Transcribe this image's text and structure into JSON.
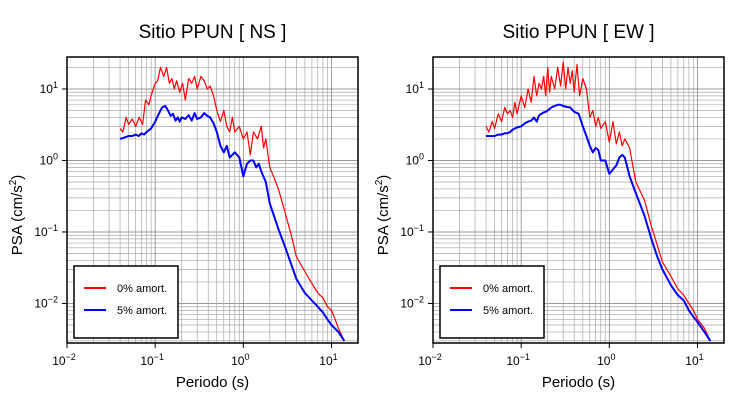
{
  "chart_data": [
    {
      "type": "line",
      "title": "Sitio PPUN [ NS ]",
      "xlabel": "Periodo (s)",
      "ylabel_base": "PSA (cm/s",
      "ylabel_sup": "2",
      "ylabel_close": ")",
      "xscale": "log",
      "yscale": "log",
      "xlim": [
        0.01,
        20
      ],
      "ylim": [
        0.0028,
        28
      ],
      "grid": true,
      "legend_placement": "bottom-left",
      "x_ticks": [
        {
          "value": 0.01,
          "base": "10",
          "exp": "−2"
        },
        {
          "value": 0.1,
          "base": "10",
          "exp": "−1"
        },
        {
          "value": 1,
          "base": "10",
          "exp": "0"
        },
        {
          "value": 10,
          "base": "10",
          "exp": "1"
        }
      ],
      "y_ticks": [
        {
          "value": 0.01,
          "base": "10",
          "exp": "−2"
        },
        {
          "value": 0.1,
          "base": "10",
          "exp": "−1"
        },
        {
          "value": 1,
          "base": "10",
          "exp": "0"
        },
        {
          "value": 10,
          "base": "10",
          "exp": "1"
        }
      ],
      "series": [
        {
          "name": "0% amort.",
          "color": "#ff0000",
          "x": [
            0.04,
            0.043,
            0.047,
            0.05,
            0.055,
            0.06,
            0.066,
            0.072,
            0.078,
            0.085,
            0.09,
            0.095,
            0.1,
            0.107,
            0.115,
            0.125,
            0.135,
            0.145,
            0.155,
            0.165,
            0.175,
            0.19,
            0.205,
            0.22,
            0.24,
            0.26,
            0.28,
            0.3,
            0.33,
            0.36,
            0.39,
            0.42,
            0.46,
            0.5,
            0.55,
            0.6,
            0.65,
            0.7,
            0.75,
            0.8,
            0.9,
            1.0,
            1.1,
            1.2,
            1.3,
            1.45,
            1.6,
            1.7,
            1.8,
            2.0,
            2.2,
            2.5,
            3.0,
            3.5,
            4.0,
            5.0,
            6.0,
            7.0,
            8.0,
            9.0,
            10.0,
            11.0,
            12.0,
            14.0
          ],
          "y": [
            2.8,
            2.5,
            4.0,
            3.2,
            3.8,
            3.0,
            4.0,
            3.2,
            7.0,
            6.0,
            8.0,
            10.0,
            12.0,
            13.0,
            20.0,
            15.0,
            20.0,
            12.0,
            14.0,
            10.0,
            13.0,
            9.0,
            12.0,
            7.0,
            14.0,
            12.0,
            15.0,
            10.0,
            15.0,
            13.0,
            10.0,
            11.0,
            8.0,
            5.0,
            3.5,
            5.0,
            3.0,
            2.5,
            4.0,
            2.5,
            3.0,
            2.0,
            2.5,
            1.2,
            2.5,
            2.0,
            3.0,
            1.5,
            2.0,
            0.8,
            0.6,
            0.4,
            0.18,
            0.09,
            0.045,
            0.028,
            0.019,
            0.014,
            0.012,
            0.009,
            0.008,
            0.006,
            0.0045,
            0.003
          ]
        },
        {
          "name": "5% amort.",
          "color": "#0000ff",
          "x": [
            0.04,
            0.045,
            0.05,
            0.055,
            0.06,
            0.065,
            0.07,
            0.075,
            0.08,
            0.09,
            0.1,
            0.11,
            0.12,
            0.13,
            0.14,
            0.15,
            0.16,
            0.17,
            0.18,
            0.19,
            0.2,
            0.22,
            0.24,
            0.26,
            0.28,
            0.3,
            0.33,
            0.36,
            0.39,
            0.42,
            0.46,
            0.5,
            0.55,
            0.6,
            0.65,
            0.7,
            0.8,
            0.9,
            1.0,
            1.1,
            1.2,
            1.3,
            1.4,
            1.5,
            1.6,
            1.8,
            2.0,
            2.5,
            3.0,
            3.5,
            4.0,
            5.0,
            6.0,
            7.0,
            8.0,
            9.0,
            10.0,
            12.0,
            14.0
          ],
          "y": [
            2.0,
            2.1,
            2.2,
            2.2,
            2.3,
            2.2,
            2.4,
            2.3,
            2.5,
            2.8,
            3.5,
            4.5,
            5.5,
            5.8,
            5.0,
            4.2,
            4.5,
            3.6,
            4.0,
            3.5,
            4.0,
            3.8,
            4.3,
            3.6,
            4.6,
            3.8,
            4.0,
            4.6,
            4.2,
            4.0,
            3.3,
            2.5,
            1.6,
            1.3,
            1.6,
            1.1,
            1.3,
            1.1,
            0.6,
            0.9,
            1.0,
            1.0,
            0.8,
            0.9,
            0.7,
            0.5,
            0.25,
            0.11,
            0.06,
            0.035,
            0.022,
            0.014,
            0.011,
            0.009,
            0.0075,
            0.006,
            0.005,
            0.004,
            0.003
          ]
        }
      ]
    },
    {
      "type": "line",
      "title": "Sitio PPUN [ EW ]",
      "xlabel": "Periodo (s)",
      "ylabel_base": "PSA (cm/s",
      "ylabel_sup": "2",
      "ylabel_close": ")",
      "xscale": "log",
      "yscale": "log",
      "xlim": [
        0.01,
        20
      ],
      "ylim": [
        0.0028,
        28
      ],
      "grid": true,
      "legend_placement": "bottom-left",
      "x_ticks": [
        {
          "value": 0.01,
          "base": "10",
          "exp": "−2"
        },
        {
          "value": 0.1,
          "base": "10",
          "exp": "−1"
        },
        {
          "value": 1,
          "base": "10",
          "exp": "0"
        },
        {
          "value": 10,
          "base": "10",
          "exp": "1"
        }
      ],
      "y_ticks": [
        {
          "value": 0.01,
          "base": "10",
          "exp": "−2"
        },
        {
          "value": 0.1,
          "base": "10",
          "exp": "−1"
        },
        {
          "value": 1,
          "base": "10",
          "exp": "0"
        },
        {
          "value": 10,
          "base": "10",
          "exp": "1"
        }
      ],
      "series": [
        {
          "name": "0% amort.",
          "color": "#ff0000",
          "x": [
            0.04,
            0.043,
            0.047,
            0.05,
            0.055,
            0.06,
            0.065,
            0.07,
            0.075,
            0.08,
            0.085,
            0.09,
            0.1,
            0.11,
            0.12,
            0.13,
            0.14,
            0.15,
            0.16,
            0.17,
            0.18,
            0.19,
            0.2,
            0.21,
            0.22,
            0.24,
            0.26,
            0.28,
            0.3,
            0.32,
            0.34,
            0.36,
            0.38,
            0.4,
            0.43,
            0.46,
            0.5,
            0.55,
            0.6,
            0.65,
            0.7,
            0.75,
            0.8,
            0.9,
            1.0,
            1.1,
            1.2,
            1.3,
            1.4,
            1.5,
            1.7,
            2.0,
            2.5,
            3.0,
            3.5,
            4.0,
            5.0,
            6.0,
            7.0,
            8.0,
            9.0,
            10.0,
            12.0,
            14.0
          ],
          "y": [
            3.0,
            2.5,
            3.5,
            2.8,
            4.5,
            3.5,
            5.5,
            4.5,
            5.0,
            4.0,
            6.5,
            4.5,
            8.0,
            5.5,
            10.0,
            6.5,
            15.0,
            8.0,
            12.0,
            10.0,
            15.0,
            8.0,
            20.0,
            9.0,
            15.0,
            10.0,
            20.0,
            11.0,
            24.0,
            10.0,
            20.0,
            12.0,
            18.0,
            9.0,
            22.0,
            8.0,
            14.0,
            10.0,
            4.0,
            5.0,
            3.0,
            4.0,
            2.8,
            3.5,
            1.8,
            3.5,
            1.7,
            2.5,
            1.6,
            2.0,
            1.5,
            0.5,
            0.28,
            0.12,
            0.065,
            0.038,
            0.024,
            0.016,
            0.013,
            0.01,
            0.008,
            0.006,
            0.0045,
            0.003
          ]
        },
        {
          "name": "5% amort.",
          "color": "#0000ff",
          "x": [
            0.04,
            0.045,
            0.05,
            0.055,
            0.06,
            0.065,
            0.07,
            0.075,
            0.08,
            0.09,
            0.1,
            0.11,
            0.12,
            0.13,
            0.14,
            0.15,
            0.16,
            0.17,
            0.18,
            0.19,
            0.2,
            0.22,
            0.24,
            0.26,
            0.28,
            0.3,
            0.33,
            0.36,
            0.4,
            0.45,
            0.5,
            0.55,
            0.6,
            0.65,
            0.7,
            0.75,
            0.8,
            0.9,
            1.0,
            1.1,
            1.2,
            1.3,
            1.4,
            1.5,
            1.7,
            2.0,
            2.5,
            3.0,
            3.5,
            4.0,
            5.0,
            6.0,
            7.0,
            8.0,
            9.0,
            10.0,
            12.0,
            14.0
          ],
          "y": [
            2.2,
            2.2,
            2.2,
            2.3,
            2.3,
            2.4,
            2.4,
            2.5,
            2.7,
            2.9,
            3.0,
            3.3,
            3.5,
            3.6,
            4.0,
            3.5,
            4.3,
            4.5,
            4.7,
            4.8,
            5.0,
            5.5,
            5.8,
            6.0,
            6.0,
            5.8,
            5.6,
            5.5,
            4.8,
            4.5,
            3.0,
            2.2,
            1.6,
            1.3,
            1.5,
            1.4,
            1.0,
            1.0,
            0.65,
            0.75,
            0.85,
            1.1,
            1.2,
            1.1,
            0.6,
            0.35,
            0.17,
            0.08,
            0.045,
            0.03,
            0.018,
            0.013,
            0.011,
            0.008,
            0.0065,
            0.0055,
            0.004,
            0.003
          ]
        }
      ]
    }
  ]
}
